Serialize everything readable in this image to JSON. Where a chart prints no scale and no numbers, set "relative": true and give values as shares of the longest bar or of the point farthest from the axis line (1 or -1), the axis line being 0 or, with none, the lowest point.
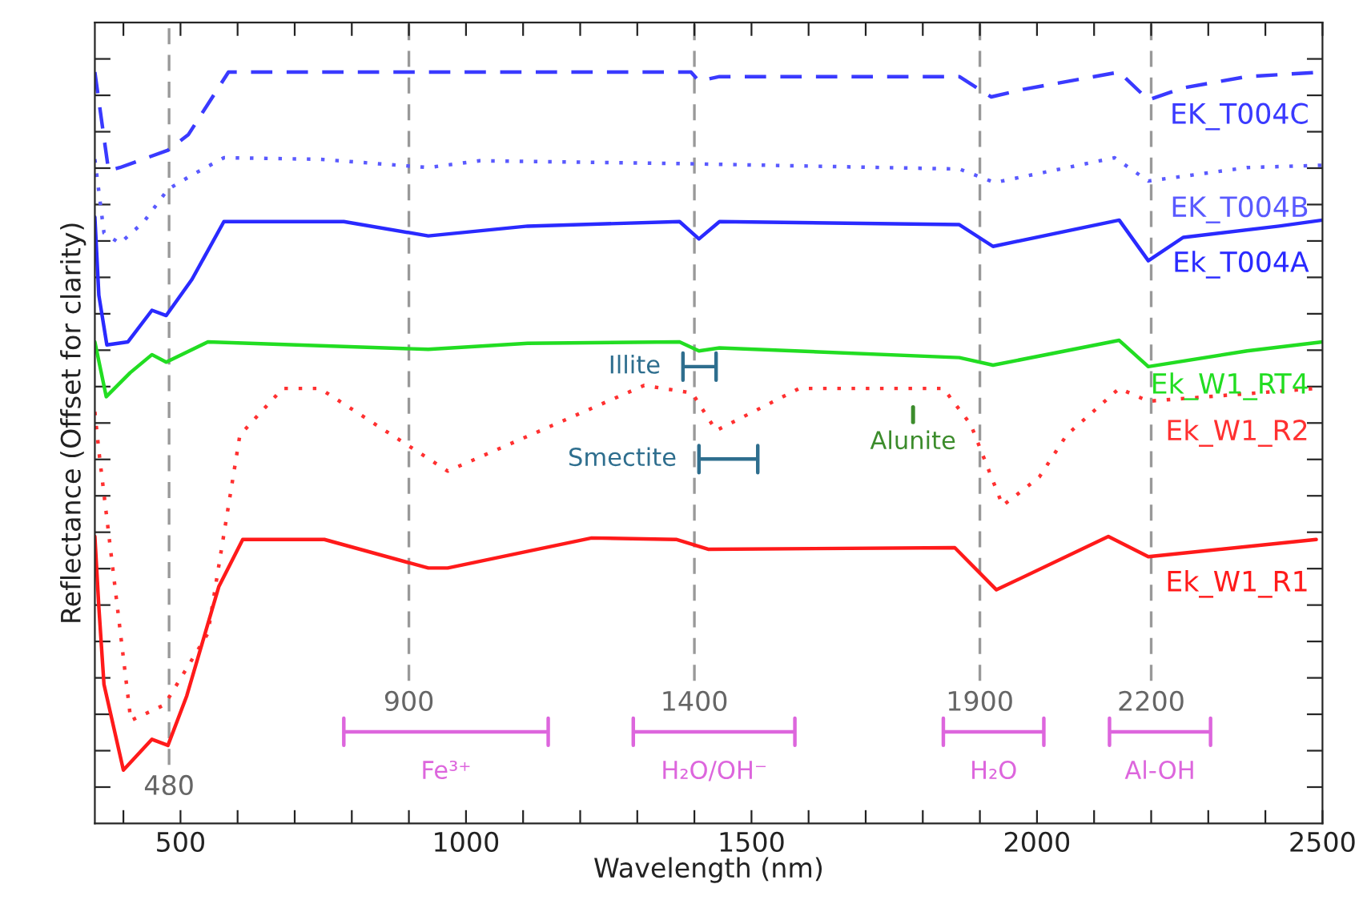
{
  "chart_data": {
    "type": "line",
    "relative": true,
    "xlabel": "Wavelength (nm)",
    "ylabel": "Reflectance (Offset for clarity)",
    "xlim": [
      350,
      2500
    ],
    "xticks": [
      {
        "value": 400,
        "label": null
      },
      500,
      {
        "value": 600,
        "label": null
      },
      {
        "value": 700,
        "label": null
      },
      {
        "value": 800,
        "label": null
      },
      {
        "value": 900,
        "label": null
      },
      1000,
      {
        "value": 1100,
        "label": null
      },
      {
        "value": 1200,
        "label": null
      },
      {
        "value": 1300,
        "label": null
      },
      {
        "value": 1400,
        "label": null
      },
      1500,
      {
        "value": 1600,
        "label": null
      },
      {
        "value": 1700,
        "label": null
      },
      {
        "value": 1800,
        "label": null
      },
      {
        "value": 1900,
        "label": null
      },
      2000,
      {
        "value": 2100,
        "label": null
      },
      {
        "value": 2200,
        "label": null
      },
      {
        "value": 2300,
        "label": null
      },
      {
        "value": 2400,
        "label": null
      },
      2500
    ],
    "tick_labels": "x",
    "grid": false,
    "marker": "none",
    "series": [
      {
        "name": "EK_T004C",
        "color": "#3a3aff",
        "line_style": "dashed",
        "x": [
          350,
          374,
          394,
          478,
          514,
          584,
          1394,
          1408,
          1444,
          1864,
          1920,
          1976,
          2144,
          2195,
          2256,
          2368,
          2500
        ],
        "values": [
          1.0,
          0.869,
          0.873,
          0.896,
          0.917,
          1.0,
          1.0,
          0.988,
          0.994,
          0.994,
          0.967,
          0.977,
          1.0,
          0.963,
          0.979,
          0.994,
          1.0
        ]
      },
      {
        "name": "EK_T004B",
        "color": "#5a5aff",
        "line_style": "dotted",
        "x": [
          350,
          366,
          394,
          436,
          478,
          520,
          576,
          744,
          934,
          1024,
          1394,
          1864,
          1926,
          2136,
          2195,
          2368,
          2500
        ],
        "values": [
          0.884,
          0.786,
          0.772,
          0.801,
          0.844,
          0.863,
          0.886,
          0.884,
          0.873,
          0.882,
          0.878,
          0.871,
          0.853,
          0.886,
          0.855,
          0.873,
          0.876
        ]
      },
      {
        "name": "Ek_T004A",
        "color": "#2a2aff",
        "line_style": "solid",
        "x": [
          350,
          357,
          371,
          408,
          450,
          475,
          520,
          576,
          786,
          934,
          1108,
          1374,
          1408,
          1444,
          1864,
          1923,
          2144,
          2195,
          2256,
          2424,
          2500
        ],
        "values": [
          0.807,
          0.703,
          0.637,
          0.641,
          0.683,
          0.676,
          0.724,
          0.801,
          0.801,
          0.782,
          0.795,
          0.801,
          0.778,
          0.801,
          0.797,
          0.768,
          0.803,
          0.749,
          0.78,
          0.795,
          0.803
        ]
      },
      {
        "name": "Ek_W1_RT4",
        "color": "#22dd22",
        "line_style": "solid",
        "x": [
          350,
          370,
          412,
          450,
          475,
          548,
          934,
          1108,
          1374,
          1408,
          1444,
          1864,
          1923,
          2144,
          2195,
          2368,
          2500
        ],
        "values": [
          0.641,
          0.568,
          0.6,
          0.624,
          0.614,
          0.641,
          0.631,
          0.639,
          0.641,
          0.629,
          0.633,
          0.62,
          0.61,
          0.643,
          0.608,
          0.629,
          0.641
        ]
      },
      {
        "name": "Ek_W1_R2",
        "color": "#ff3030",
        "line_style": "dotted",
        "x": [
          350,
          357,
          413,
          472,
          548,
          604,
          679,
          744,
          968,
          1312,
          1396,
          1438,
          1584,
          1836,
          1884,
          1940,
          2004,
          2052,
          2144,
          2195,
          2489
        ],
        "values": [
          0.548,
          0.496,
          0.137,
          0.158,
          0.253,
          0.517,
          0.579,
          0.579,
          0.469,
          0.583,
          0.573,
          0.523,
          0.579,
          0.579,
          0.531,
          0.423,
          0.461,
          0.517,
          0.579,
          0.562,
          0.579
        ]
      },
      {
        "name": "Ek_W1_R1",
        "color": "#ff1a1a",
        "line_style": "solid",
        "x": [
          350,
          357,
          366,
          400,
          450,
          478,
          511,
          567,
          609,
          752,
          934,
          968,
          1220,
          1368,
          1424,
          1856,
          1929,
          2125,
          2195,
          2489
        ],
        "values": [
          0.382,
          0.288,
          0.185,
          0.071,
          0.112,
          0.104,
          0.17,
          0.315,
          0.378,
          0.378,
          0.34,
          0.34,
          0.38,
          0.378,
          0.365,
          0.367,
          0.311,
          0.382,
          0.355,
          0.378
        ]
      },
      {
        "name": "Illite",
        "color": "#2e6e8e",
        "line_style": "solid",
        "x": [
          1380,
          1380,
          1380,
          1438,
          1438,
          1438
        ],
        "values": [
          0.626,
          0.59,
          0.608,
          0.608,
          0.626,
          0.59
        ]
      },
      {
        "name": "Smectite",
        "color": "#2e6e8e",
        "line_style": "solid",
        "x": [
          1408,
          1408,
          1408,
          1511,
          1511,
          1511
        ],
        "values": [
          0.503,
          0.467,
          0.485,
          0.485,
          0.503,
          0.467
        ]
      },
      {
        "name": "Fe³⁺",
        "color": "#dd66dd",
        "line_style": "solid",
        "x": [
          786,
          786,
          786,
          1144,
          1144,
          1144
        ],
        "values": [
          0.14,
          0.104,
          0.122,
          0.122,
          0.14,
          0.104
        ]
      },
      {
        "name": "H₂O/OH⁻",
        "color": "#dd66dd",
        "line_style": "solid",
        "x": [
          1293,
          1293,
          1293,
          1576,
          1576,
          1576
        ],
        "values": [
          0.14,
          0.104,
          0.122,
          0.122,
          0.14,
          0.104
        ]
      },
      {
        "name": "H₂O",
        "color": "#dd66dd",
        "line_style": "solid",
        "x": [
          1836,
          1836,
          1836,
          2012,
          2012,
          2012
        ],
        "values": [
          0.14,
          0.104,
          0.122,
          0.122,
          0.14,
          0.104
        ]
      },
      {
        "name": "Al-OH",
        "color": "#dd66dd",
        "line_style": "solid",
        "x": [
          2127,
          2127,
          2127,
          2304,
          2304,
          2304
        ],
        "values": [
          0.14,
          0.104,
          0.122,
          0.122,
          0.14,
          0.104
        ]
      }
    ],
    "ref_lines": [
      {
        "axis": "x",
        "value": 480,
        "label": "480",
        "color": "#999999",
        "line_style": "dashed"
      },
      {
        "axis": "x",
        "value": 900,
        "label": "900",
        "color": "#999999",
        "line_style": "dashed"
      },
      {
        "axis": "x",
        "value": 1400,
        "label": "1400",
        "color": "#999999",
        "line_style": "dashed"
      },
      {
        "axis": "x",
        "value": 1900,
        "label": "1900",
        "color": "#999999",
        "line_style": "dashed"
      },
      {
        "axis": "x",
        "value": 2200,
        "label": "2200",
        "color": "#999999",
        "line_style": "dashed"
      },
      {
        "axis": "x",
        "value": 1783,
        "label": "Alunite",
        "color": "#3c8c2c",
        "line_style": "solid"
      }
    ]
  }
}
